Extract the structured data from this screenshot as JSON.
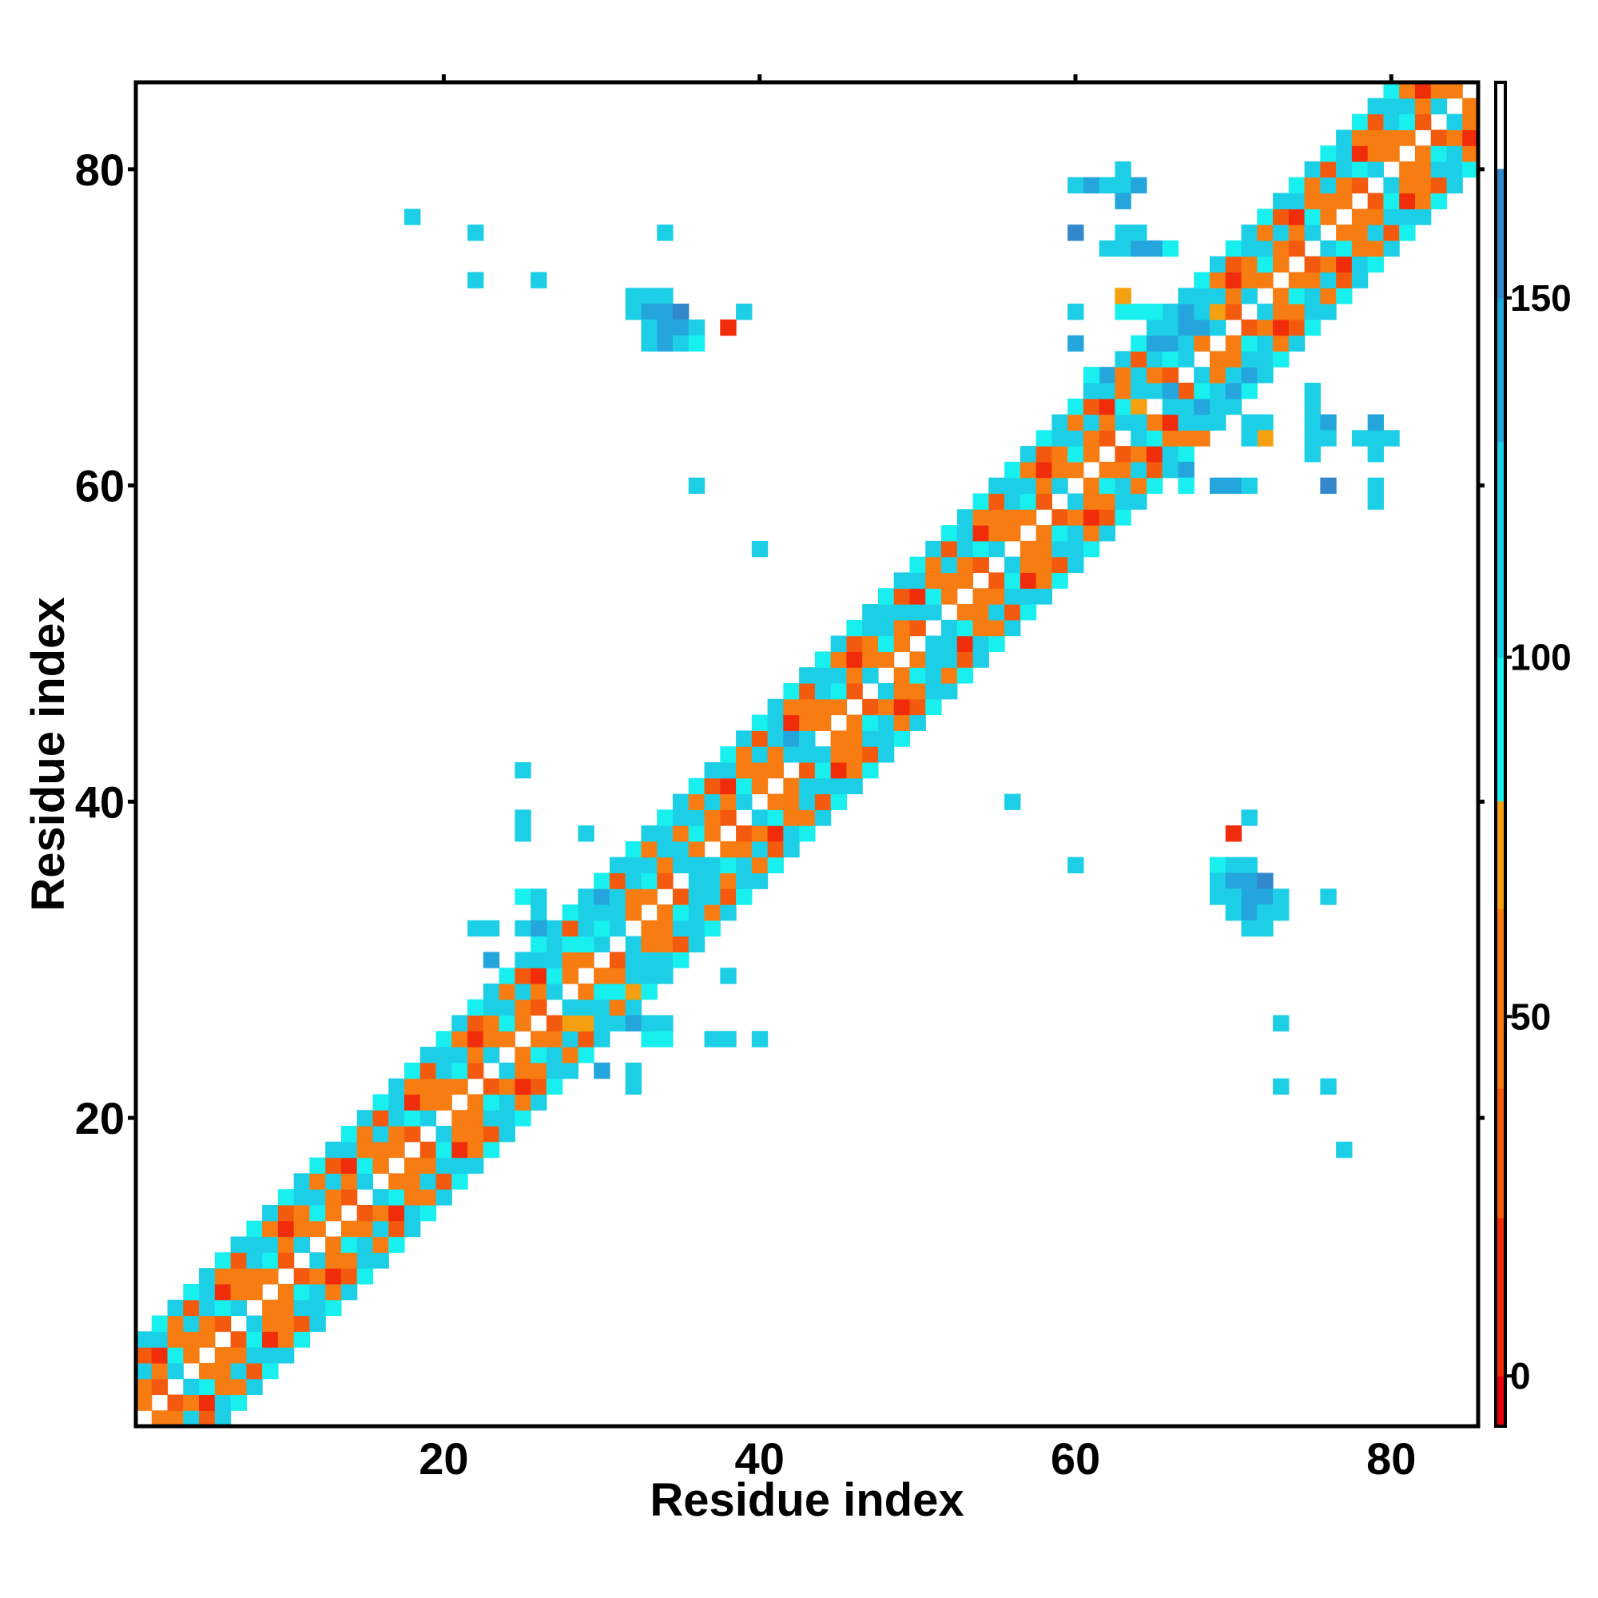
{
  "chart_data": {
    "type": "heatmap",
    "title": "",
    "xlabel": "Residue index",
    "ylabel": "Residue index",
    "xlim": [
      0.5,
      85.5
    ],
    "ylim": [
      0.5,
      85.5
    ],
    "x_ticks": [
      20,
      40,
      60,
      80
    ],
    "y_ticks": [
      20,
      40,
      60,
      80
    ],
    "colorbar": {
      "range": [
        -7,
        180
      ],
      "ticks": [
        0,
        50,
        100,
        150
      ],
      "bands": [
        {
          "from": -7,
          "to": 0,
          "color": "#e8000a"
        },
        {
          "from": 0,
          "to": 22,
          "color": "#f02c0a"
        },
        {
          "from": 22,
          "to": 40,
          "color": "#f45a0e"
        },
        {
          "from": 40,
          "to": 65,
          "color": "#f77c12"
        },
        {
          "from": 65,
          "to": 80,
          "color": "#f5a010"
        },
        {
          "from": 80,
          "to": 100,
          "color": "#18f0f0"
        },
        {
          "from": 100,
          "to": 130,
          "color": "#1ccfe6"
        },
        {
          "from": 130,
          "to": 150,
          "color": "#24a6dc"
        },
        {
          "from": 150,
          "to": 168,
          "color": "#3388cc"
        },
        {
          "from": 168,
          "to": 180,
          "color": "#ffffff"
        }
      ]
    },
    "band_pattern": [
      {
        "offset": 1,
        "values": [
          45,
          25,
          105,
          55
        ]
      },
      {
        "offset": 2,
        "values": [
          55,
          40,
          90
        ]
      },
      {
        "offset": 3,
        "values": [
          110,
          20,
          60,
          120
        ]
      },
      {
        "offset": 4,
        "values": [
          25,
          110,
          50
        ]
      },
      {
        "offset": 5,
        "values": [
          120,
          95
        ]
      }
    ],
    "off_diagonal_cells": [
      {
        "x": 18,
        "y": 77,
        "v": 110
      },
      {
        "x": 22,
        "y": 76,
        "v": 110
      },
      {
        "x": 22,
        "y": 73,
        "v": 110
      },
      {
        "x": 26,
        "y": 73,
        "v": 110
      },
      {
        "x": 34,
        "y": 76,
        "v": 110
      },
      {
        "x": 32,
        "y": 72,
        "v": 110
      },
      {
        "x": 33,
        "y": 72,
        "v": 120
      },
      {
        "x": 34,
        "y": 72,
        "v": 110
      },
      {
        "x": 32,
        "y": 71,
        "v": 110
      },
      {
        "x": 33,
        "y": 71,
        "v": 130
      },
      {
        "x": 34,
        "y": 71,
        "v": 140
      },
      {
        "x": 35,
        "y": 71,
        "v": 150
      },
      {
        "x": 33,
        "y": 70,
        "v": 120
      },
      {
        "x": 34,
        "y": 70,
        "v": 145
      },
      {
        "x": 35,
        "y": 70,
        "v": 130
      },
      {
        "x": 36,
        "y": 70,
        "v": 110
      },
      {
        "x": 33,
        "y": 69,
        "v": 110
      },
      {
        "x": 34,
        "y": 69,
        "v": 130
      },
      {
        "x": 35,
        "y": 69,
        "v": 120
      },
      {
        "x": 36,
        "y": 69,
        "v": 95
      },
      {
        "x": 38,
        "y": 70,
        "v": 10
      },
      {
        "x": 39,
        "y": 71,
        "v": 110
      },
      {
        "x": 36,
        "y": 60,
        "v": 110
      },
      {
        "x": 40,
        "y": 56,
        "v": 110
      },
      {
        "x": 60,
        "y": 79,
        "v": 110
      },
      {
        "x": 61,
        "y": 79,
        "v": 130
      },
      {
        "x": 63,
        "y": 80,
        "v": 110
      },
      {
        "x": 63,
        "y": 79,
        "v": 110
      },
      {
        "x": 64,
        "y": 79,
        "v": 145
      },
      {
        "x": 62,
        "y": 79,
        "v": 110
      },
      {
        "x": 63,
        "y": 78,
        "v": 130
      },
      {
        "x": 60,
        "y": 76,
        "v": 150
      },
      {
        "x": 62,
        "y": 75,
        "v": 110
      },
      {
        "x": 63,
        "y": 75,
        "v": 110
      },
      {
        "x": 64,
        "y": 75,
        "v": 130
      },
      {
        "x": 65,
        "y": 75,
        "v": 130
      },
      {
        "x": 66,
        "y": 75,
        "v": 90
      },
      {
        "x": 63,
        "y": 76,
        "v": 110
      },
      {
        "x": 64,
        "y": 76,
        "v": 110
      },
      {
        "x": 60,
        "y": 71,
        "v": 110
      },
      {
        "x": 60,
        "y": 69,
        "v": 130
      },
      {
        "x": 25,
        "y": 42,
        "v": 110
      },
      {
        "x": 25,
        "y": 39,
        "v": 110
      },
      {
        "x": 25,
        "y": 38,
        "v": 110
      },
      {
        "x": 29,
        "y": 38,
        "v": 110
      },
      {
        "x": 38,
        "y": 29,
        "v": 110
      },
      {
        "x": 37,
        "y": 25,
        "v": 110
      },
      {
        "x": 38,
        "y": 25,
        "v": 110
      },
      {
        "x": 40,
        "y": 25,
        "v": 110
      },
      {
        "x": 33,
        "y": 25,
        "v": 95
      },
      {
        "x": 32,
        "y": 23,
        "v": 110
      },
      {
        "x": 32,
        "y": 22,
        "v": 110
      },
      {
        "x": 30,
        "y": 23,
        "v": 130
      },
      {
        "x": 56,
        "y": 40,
        "v": 110
      },
      {
        "x": 60,
        "y": 36,
        "v": 110
      },
      {
        "x": 71,
        "y": 39,
        "v": 110
      },
      {
        "x": 70,
        "y": 38,
        "v": 10
      },
      {
        "x": 69,
        "y": 36,
        "v": 90
      },
      {
        "x": 70,
        "y": 36,
        "v": 110
      },
      {
        "x": 71,
        "y": 36,
        "v": 120
      },
      {
        "x": 69,
        "y": 35,
        "v": 110
      },
      {
        "x": 70,
        "y": 35,
        "v": 130
      },
      {
        "x": 71,
        "y": 35,
        "v": 140
      },
      {
        "x": 72,
        "y": 35,
        "v": 150
      },
      {
        "x": 69,
        "y": 34,
        "v": 110
      },
      {
        "x": 70,
        "y": 34,
        "v": 120
      },
      {
        "x": 71,
        "y": 34,
        "v": 145
      },
      {
        "x": 72,
        "y": 34,
        "v": 130
      },
      {
        "x": 73,
        "y": 34,
        "v": 110
      },
      {
        "x": 70,
        "y": 33,
        "v": 110
      },
      {
        "x": 71,
        "y": 33,
        "v": 130
      },
      {
        "x": 72,
        "y": 33,
        "v": 120
      },
      {
        "x": 73,
        "y": 33,
        "v": 110
      },
      {
        "x": 71,
        "y": 32,
        "v": 110
      },
      {
        "x": 72,
        "y": 32,
        "v": 110
      },
      {
        "x": 76,
        "y": 34,
        "v": 110
      },
      {
        "x": 73,
        "y": 26,
        "v": 110
      },
      {
        "x": 73,
        "y": 22,
        "v": 110
      },
      {
        "x": 76,
        "y": 22,
        "v": 110
      },
      {
        "x": 77,
        "y": 18,
        "v": 110
      },
      {
        "x": 67,
        "y": 61,
        "v": 140
      },
      {
        "x": 67,
        "y": 60,
        "v": 95
      },
      {
        "x": 69,
        "y": 60,
        "v": 130
      },
      {
        "x": 70,
        "y": 60,
        "v": 130
      },
      {
        "x": 71,
        "y": 60,
        "v": 110
      },
      {
        "x": 76,
        "y": 60,
        "v": 150
      },
      {
        "x": 79,
        "y": 60,
        "v": 110
      },
      {
        "x": 79,
        "y": 59,
        "v": 110
      },
      {
        "x": 75,
        "y": 66,
        "v": 110
      },
      {
        "x": 75,
        "y": 65,
        "v": 110
      },
      {
        "x": 75,
        "y": 64,
        "v": 120
      },
      {
        "x": 76,
        "y": 64,
        "v": 130
      },
      {
        "x": 75,
        "y": 63,
        "v": 110
      },
      {
        "x": 76,
        "y": 63,
        "v": 110
      },
      {
        "x": 75,
        "y": 62,
        "v": 110
      },
      {
        "x": 78,
        "y": 63,
        "v": 110
      },
      {
        "x": 79,
        "y": 63,
        "v": 110
      },
      {
        "x": 80,
        "y": 63,
        "v": 110
      },
      {
        "x": 79,
        "y": 64,
        "v": 140
      },
      {
        "x": 79,
        "y": 62,
        "v": 110
      },
      {
        "x": 71,
        "y": 64,
        "v": 110
      },
      {
        "x": 72,
        "y": 64,
        "v": 110
      },
      {
        "x": 72,
        "y": 63,
        "v": 70
      },
      {
        "x": 71,
        "y": 63,
        "v": 110
      },
      {
        "x": 63,
        "y": 71,
        "v": 90
      },
      {
        "x": 64,
        "y": 71,
        "v": 90
      },
      {
        "x": 65,
        "y": 71,
        "v": 90
      },
      {
        "x": 63,
        "y": 72,
        "v": 70
      },
      {
        "x": 66,
        "y": 71,
        "v": 120
      },
      {
        "x": 67,
        "y": 71,
        "v": 130
      },
      {
        "x": 68,
        "y": 71,
        "v": 120
      },
      {
        "x": 69,
        "y": 71,
        "v": 70
      },
      {
        "x": 66,
        "y": 70,
        "v": 110
      },
      {
        "x": 67,
        "y": 70,
        "v": 140
      },
      {
        "x": 68,
        "y": 70,
        "v": 130
      },
      {
        "x": 69,
        "y": 70,
        "v": 110
      },
      {
        "x": 65,
        "y": 69,
        "v": 130
      },
      {
        "x": 66,
        "y": 69,
        "v": 145
      },
      {
        "x": 67,
        "y": 69,
        "v": 110
      },
      {
        "x": 68,
        "y": 69,
        "v": 60
      },
      {
        "x": 61,
        "y": 67,
        "v": 95
      },
      {
        "x": 62,
        "y": 67,
        "v": 140
      },
      {
        "x": 69,
        "y": 66,
        "v": 110
      },
      {
        "x": 70,
        "y": 66,
        "v": 130
      },
      {
        "x": 69,
        "y": 65,
        "v": 120
      },
      {
        "x": 70,
        "y": 65,
        "v": 110
      },
      {
        "x": 71,
        "y": 68,
        "v": 110
      },
      {
        "x": 71,
        "y": 67,
        "v": 130
      },
      {
        "x": 70,
        "y": 67,
        "v": 120
      },
      {
        "x": 64,
        "y": 66,
        "v": 120
      },
      {
        "x": 64,
        "y": 65,
        "v": 70
      },
      {
        "x": 66,
        "y": 64,
        "v": 20
      },
      {
        "x": 65,
        "y": 64,
        "v": 50
      },
      {
        "x": 64,
        "y": 64,
        "v": 110
      },
      {
        "x": 67,
        "y": 63,
        "v": 60
      },
      {
        "x": 68,
        "y": 63,
        "v": 60
      },
      {
        "x": 66,
        "y": 65,
        "v": 110
      },
      {
        "x": 67,
        "y": 65,
        "v": 120
      },
      {
        "x": 68,
        "y": 65,
        "v": 130
      },
      {
        "x": 68,
        "y": 64,
        "v": 110
      },
      {
        "x": 69,
        "y": 64,
        "v": 110
      },
      {
        "x": 65,
        "y": 66,
        "v": 100
      },
      {
        "x": 66,
        "y": 66,
        "v": 130
      },
      {
        "x": 25,
        "y": 34,
        "v": 90
      },
      {
        "x": 26,
        "y": 34,
        "v": 110
      },
      {
        "x": 26,
        "y": 33,
        "v": 110
      },
      {
        "x": 25,
        "y": 32,
        "v": 110
      },
      {
        "x": 26,
        "y": 32,
        "v": 140
      },
      {
        "x": 22,
        "y": 32,
        "v": 110
      },
      {
        "x": 23,
        "y": 32,
        "v": 110
      },
      {
        "x": 23,
        "y": 30,
        "v": 130
      },
      {
        "x": 29,
        "y": 34,
        "v": 110
      },
      {
        "x": 30,
        "y": 34,
        "v": 130
      },
      {
        "x": 31,
        "y": 34,
        "v": 110
      },
      {
        "x": 29,
        "y": 33,
        "v": 110
      },
      {
        "x": 30,
        "y": 33,
        "v": 120
      },
      {
        "x": 31,
        "y": 33,
        "v": 110
      },
      {
        "x": 28,
        "y": 31,
        "v": 90
      },
      {
        "x": 29,
        "y": 31,
        "v": 90
      },
      {
        "x": 30,
        "y": 31,
        "v": 110
      },
      {
        "x": 27,
        "y": 31,
        "v": 110
      },
      {
        "x": 27,
        "y": 30,
        "v": 110
      },
      {
        "x": 32,
        "y": 30,
        "v": 110
      },
      {
        "x": 33,
        "y": 30,
        "v": 110
      },
      {
        "x": 34,
        "y": 30,
        "v": 110
      },
      {
        "x": 32,
        "y": 29,
        "v": 110
      },
      {
        "x": 33,
        "y": 29,
        "v": 110
      },
      {
        "x": 34,
        "y": 29,
        "v": 110
      },
      {
        "x": 30,
        "y": 28,
        "v": 90
      },
      {
        "x": 31,
        "y": 28,
        "v": 90
      },
      {
        "x": 32,
        "y": 28,
        "v": 70
      },
      {
        "x": 29,
        "y": 27,
        "v": 110
      },
      {
        "x": 30,
        "y": 27,
        "v": 110
      },
      {
        "x": 28,
        "y": 26,
        "v": 70
      },
      {
        "x": 29,
        "y": 26,
        "v": 70
      },
      {
        "x": 30,
        "y": 26,
        "v": 110
      },
      {
        "x": 31,
        "y": 26,
        "v": 110
      },
      {
        "x": 32,
        "y": 26,
        "v": 130
      },
      {
        "x": 33,
        "y": 26,
        "v": 120
      },
      {
        "x": 34,
        "y": 26,
        "v": 110
      },
      {
        "x": 34,
        "y": 25,
        "v": 90
      },
      {
        "x": 34,
        "y": 37,
        "v": 110
      },
      {
        "x": 35,
        "y": 37,
        "v": 110
      },
      {
        "x": 34,
        "y": 38,
        "v": 110
      },
      {
        "x": 36,
        "y": 36,
        "v": 110
      },
      {
        "x": 37,
        "y": 36,
        "v": 110
      },
      {
        "x": 37,
        "y": 35,
        "v": 110
      },
      {
        "x": 36,
        "y": 34,
        "v": 110
      },
      {
        "x": 37,
        "y": 34,
        "v": 110
      },
      {
        "x": 42,
        "y": 43,
        "v": 110
      },
      {
        "x": 43,
        "y": 43,
        "v": 110
      },
      {
        "x": 42,
        "y": 44,
        "v": 130
      },
      {
        "x": 43,
        "y": 41,
        "v": 110
      },
      {
        "x": 44,
        "y": 41,
        "v": 120
      },
      {
        "x": 45,
        "y": 41,
        "v": 110
      },
      {
        "x": 50,
        "y": 52,
        "v": 110
      },
      {
        "x": 51,
        "y": 50,
        "v": 110
      },
      {
        "x": 52,
        "y": 50,
        "v": 110
      },
      {
        "x": 51,
        "y": 49,
        "v": 110
      },
      {
        "x": 52,
        "y": 49,
        "v": 110
      },
      {
        "x": 48,
        "y": 52,
        "v": 110
      },
      {
        "x": 49,
        "y": 52,
        "v": 110
      },
      {
        "x": 48,
        "y": 51,
        "v": 110
      }
    ]
  }
}
